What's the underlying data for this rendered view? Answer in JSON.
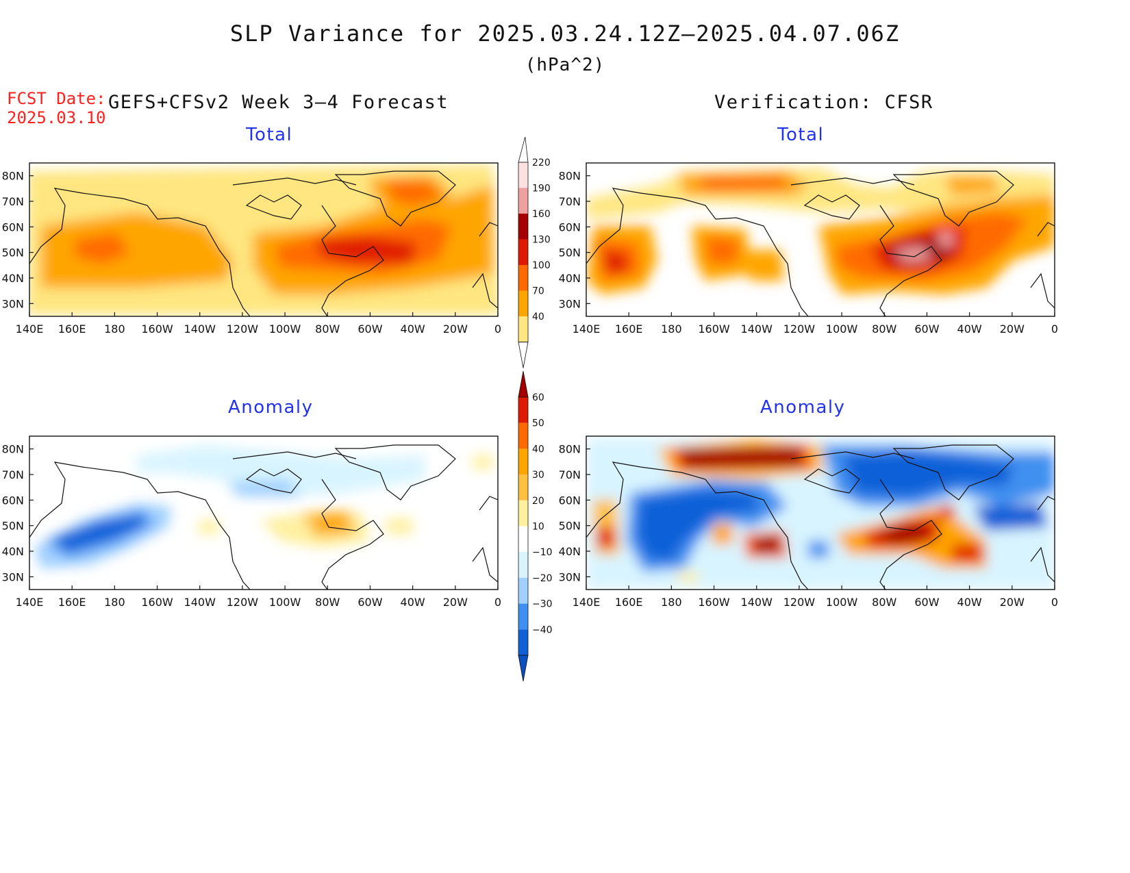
{
  "title": "SLP Variance for 2025.03.24.12Z–2025.04.07.06Z",
  "units": "(hPa^2)",
  "fcst_date_label": "FCST Date:",
  "fcst_date_value": "2025.03.10",
  "left_header": "GEFS+CFSv2 Week 3–4 Forecast",
  "right_header": "Verification: CFSR",
  "panels": {
    "forecast_total": {
      "label": "Total"
    },
    "verification_total": {
      "label": "Total"
    },
    "forecast_anomaly": {
      "label": "Anomaly"
    },
    "verification_anomaly": {
      "label": "Anomaly"
    }
  },
  "axes": {
    "lon_ticks": [
      "140E",
      "160E",
      "180",
      "160W",
      "140W",
      "120W",
      "100W",
      "80W",
      "60W",
      "40W",
      "20W",
      "0"
    ],
    "lat_ticks": [
      "30N",
      "40N",
      "50N",
      "60N",
      "70N",
      "80N"
    ],
    "lat_range": [
      25,
      85
    ],
    "lon_range": [
      "140E",
      "0"
    ]
  },
  "colorbars": {
    "total": {
      "labels": [
        "40",
        "70",
        "100",
        "130",
        "160",
        "190",
        "220"
      ],
      "colors": [
        "#ffe680",
        "#ffa500",
        "#ff6a00",
        "#e01a00",
        "#a50000",
        "#f0a0a0",
        "#ffe0e0"
      ]
    },
    "anomaly": {
      "labels": [
        "60",
        "50",
        "40",
        "30",
        "20",
        "10",
        "−10",
        "−20",
        "−30",
        "−40"
      ],
      "colors": [
        "#a50000",
        "#e01a00",
        "#ff6a00",
        "#ffa500",
        "#ffc040",
        "#fff0a0",
        "#ffffff",
        "#d8f4ff",
        "#a0d0ff",
        "#4090f0",
        "#1060d8",
        "#0a50c0"
      ]
    }
  },
  "colors": {
    "title_text": "#111111",
    "fcst_text": "#ff2020",
    "subtitle_text": "#2233ee"
  }
}
